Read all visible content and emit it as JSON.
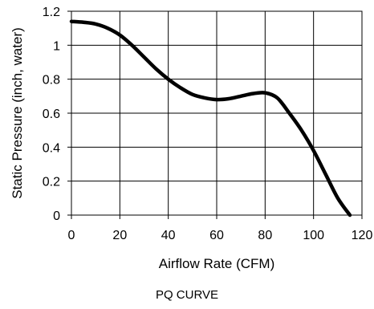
{
  "chart_data": {
    "type": "line",
    "caption": "PQ CURVE",
    "xlabel": "Airflow Rate (CFM)",
    "ylabel": "Static Pressure (inch, water)",
    "xlim": [
      0,
      120
    ],
    "ylim": [
      0,
      1.2
    ],
    "x_ticks": [
      "0",
      "20",
      "40",
      "60",
      "80",
      "100",
      "120"
    ],
    "y_ticks": [
      "0",
      "0.2",
      "0.4",
      "0.6",
      "0.8",
      "1",
      "1.2"
    ],
    "grid": true,
    "legend": "none",
    "series": [
      {
        "color": "#000000",
        "x": [
          0,
          5,
          10,
          15,
          20,
          25,
          30,
          35,
          40,
          45,
          50,
          55,
          60,
          65,
          70,
          75,
          80,
          85,
          90,
          95,
          100,
          105,
          110,
          115
        ],
        "y": [
          1.14,
          1.135,
          1.125,
          1.1,
          1.06,
          1.0,
          0.93,
          0.86,
          0.8,
          0.75,
          0.71,
          0.69,
          0.68,
          0.685,
          0.7,
          0.715,
          0.72,
          0.69,
          0.6,
          0.5,
          0.38,
          0.24,
          0.1,
          0.0
        ]
      }
    ]
  }
}
